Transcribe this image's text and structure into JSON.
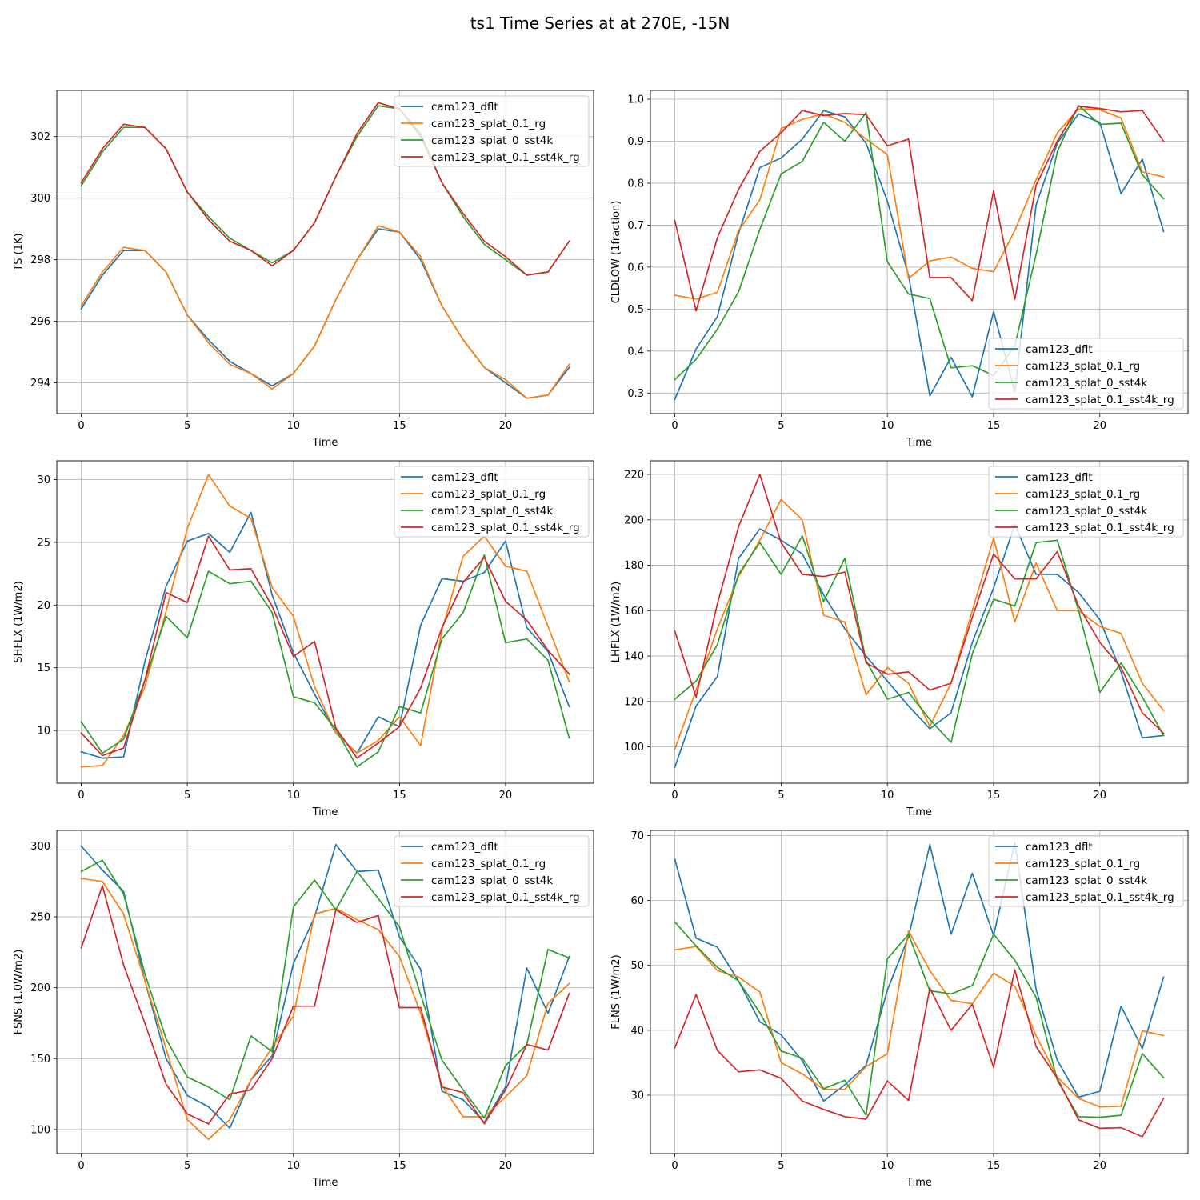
{
  "title": "ts1 Time Series at at 270E, -15N",
  "colors": {
    "cam123_dflt": "#1f77b4",
    "cam123_splat_0.1_rg": "#ff7f0e",
    "cam123_splat_0_sst4k": "#2ca02c",
    "cam123_splat_0.1_sst4k_rg": "#d62728"
  },
  "chart_data": [
    {
      "type": "line",
      "id": "ts",
      "xlabel": "Time",
      "ylabel": "TS (1K)",
      "xlim": [
        -1.15,
        24.15
      ],
      "ylim": [
        293.0,
        303.5
      ],
      "xticks": [
        0,
        5,
        10,
        15,
        20
      ],
      "yticks": [
        294,
        296,
        298,
        300,
        302
      ],
      "grid": true,
      "legend": "upper right",
      "x": [
        0,
        1,
        2,
        3,
        4,
        5,
        6,
        7,
        8,
        9,
        10,
        11,
        12,
        13,
        14,
        15,
        16,
        17,
        18,
        19,
        20,
        21,
        22,
        23
      ],
      "series": [
        {
          "name": "cam123_dflt",
          "values": [
            296.4,
            297.5,
            298.3,
            298.3,
            297.6,
            296.2,
            295.4,
            294.7,
            294.3,
            293.9,
            294.3,
            295.2,
            296.7,
            298.0,
            299.0,
            298.9,
            298.0,
            296.5,
            295.4,
            294.5,
            294.0,
            293.5,
            293.6,
            294.5
          ]
        },
        {
          "name": "cam123_splat_0.1_rg",
          "values": [
            296.5,
            297.6,
            298.4,
            298.3,
            297.6,
            296.2,
            295.3,
            294.6,
            294.3,
            293.8,
            294.3,
            295.2,
            296.7,
            298.0,
            299.1,
            298.9,
            298.1,
            296.5,
            295.4,
            294.5,
            294.1,
            293.5,
            293.6,
            294.6
          ]
        },
        {
          "name": "cam123_splat_0_sst4k",
          "values": [
            300.4,
            301.5,
            302.3,
            302.3,
            301.6,
            300.2,
            299.4,
            298.7,
            298.3,
            297.9,
            298.3,
            299.2,
            300.7,
            302.0,
            303.0,
            302.9,
            302.1,
            300.5,
            299.4,
            298.5,
            298.0,
            297.5,
            297.6,
            298.6
          ]
        },
        {
          "name": "cam123_splat_0.1_sst4k_rg",
          "values": [
            300.5,
            301.6,
            302.4,
            302.3,
            301.6,
            300.2,
            299.3,
            298.6,
            298.3,
            297.8,
            298.3,
            299.2,
            300.7,
            302.1,
            303.1,
            302.9,
            302.0,
            300.5,
            299.5,
            298.6,
            298.1,
            297.5,
            297.6,
            298.6
          ]
        }
      ]
    },
    {
      "type": "line",
      "id": "cldlow",
      "xlabel": "Time",
      "ylabel": "CLDLOW (1fraction)",
      "xlim": [
        -1.15,
        24.15
      ],
      "ylim": [
        0.251,
        1.021
      ],
      "xticks": [
        0,
        5,
        10,
        15,
        20
      ],
      "yticks": [
        0.3,
        0.4,
        0.5,
        0.6,
        0.7,
        0.8,
        0.9,
        1.0
      ],
      "ytick_labels": [
        "0.3",
        "0.4",
        "0.5",
        "0.6",
        "0.7",
        "0.8",
        "0.9",
        "1.0"
      ],
      "grid": true,
      "legend": "lower right",
      "x": [
        0,
        1,
        2,
        3,
        4,
        5,
        6,
        7,
        8,
        9,
        10,
        11,
        12,
        13,
        14,
        15,
        16,
        17,
        18,
        19,
        20,
        21,
        22,
        23
      ],
      "series": [
        {
          "name": "cam123_dflt",
          "values": [
            0.285,
            0.405,
            0.482,
            0.68,
            0.837,
            0.86,
            0.905,
            0.973,
            0.958,
            0.895,
            0.757,
            0.58,
            0.293,
            0.385,
            0.291,
            0.494,
            0.303,
            0.748,
            0.895,
            0.965,
            0.945,
            0.775,
            0.857,
            0.685
          ]
        },
        {
          "name": "cam123_splat_0.1_rg",
          "values": [
            0.533,
            0.524,
            0.54,
            0.687,
            0.76,
            0.93,
            0.952,
            0.965,
            0.945,
            0.905,
            0.868,
            0.573,
            0.615,
            0.624,
            0.597,
            0.589,
            0.687,
            0.808,
            0.92,
            0.977,
            0.975,
            0.955,
            0.827,
            0.815
          ]
        },
        {
          "name": "cam123_splat_0_sst4k",
          "values": [
            0.332,
            0.38,
            0.452,
            0.541,
            0.69,
            0.822,
            0.852,
            0.945,
            0.9,
            0.968,
            0.613,
            0.536,
            0.525,
            0.36,
            0.365,
            0.342,
            0.412,
            0.63,
            0.875,
            0.985,
            0.94,
            0.943,
            0.82,
            0.763
          ]
        },
        {
          "name": "cam123_splat_0.1_sst4k_rg",
          "values": [
            0.711,
            0.496,
            0.67,
            0.785,
            0.876,
            0.92,
            0.973,
            0.961,
            0.966,
            0.963,
            0.889,
            0.905,
            0.575,
            0.575,
            0.52,
            0.782,
            0.523,
            0.795,
            0.9,
            0.983,
            0.978,
            0.97,
            0.973,
            0.9
          ]
        }
      ]
    },
    {
      "type": "line",
      "id": "shflx",
      "xlabel": "Time",
      "ylabel": "SHFLX (1W/m2)",
      "xlim": [
        -1.15,
        24.15
      ],
      "ylim": [
        5.8,
        31.5
      ],
      "xticks": [
        0,
        5,
        10,
        15,
        20
      ],
      "yticks": [
        10,
        15,
        20,
        25,
        30
      ],
      "grid": true,
      "legend": "upper right",
      "x": [
        0,
        1,
        2,
        3,
        4,
        5,
        6,
        7,
        8,
        9,
        10,
        11,
        12,
        13,
        14,
        15,
        16,
        17,
        18,
        19,
        20,
        21,
        22,
        23
      ],
      "series": [
        {
          "name": "cam123_dflt",
          "values": [
            8.3,
            7.8,
            7.9,
            15.5,
            21.5,
            25.1,
            25.7,
            24.2,
            27.4,
            20.8,
            16.2,
            12.9,
            9.8,
            8.2,
            11.1,
            10.3,
            18.4,
            22.1,
            21.9,
            22.6,
            25.1,
            18.2,
            16.3,
            11.9
          ]
        },
        {
          "name": "cam123_splat_0.1_rg",
          "values": [
            7.1,
            7.2,
            9.6,
            13.5,
            19.5,
            26.1,
            30.4,
            27.9,
            26.9,
            21.4,
            19.1,
            13.5,
            9.8,
            8.2,
            9.2,
            11.1,
            8.8,
            18.0,
            23.9,
            25.5,
            23.1,
            22.7,
            18.3,
            13.9
          ]
        },
        {
          "name": "cam123_splat_0_sst4k",
          "values": [
            10.7,
            8.2,
            9.3,
            14.0,
            19.1,
            17.4,
            22.7,
            21.7,
            21.9,
            19.4,
            12.7,
            12.2,
            10.1,
            7.1,
            8.3,
            11.9,
            11.4,
            17.3,
            19.4,
            24.0,
            17.0,
            17.3,
            15.6,
            9.4
          ]
        },
        {
          "name": "cam123_splat_0.1_sst4k_rg",
          "values": [
            9.8,
            8.0,
            8.6,
            14.0,
            21.0,
            20.2,
            25.5,
            22.8,
            22.9,
            19.9,
            15.9,
            17.1,
            10.2,
            7.8,
            9.0,
            10.3,
            13.4,
            18.2,
            21.8,
            23.8,
            20.3,
            18.8,
            16.4,
            14.5
          ]
        }
      ]
    },
    {
      "type": "line",
      "id": "lhflx",
      "xlabel": "Time",
      "ylabel": "LHFLX (1W/m2)",
      "xlim": [
        -1.15,
        24.15
      ],
      "ylim": [
        84.0,
        226.0
      ],
      "xticks": [
        0,
        5,
        10,
        15,
        20
      ],
      "yticks": [
        100,
        120,
        140,
        160,
        180,
        200,
        220
      ],
      "grid": true,
      "legend": "upper right",
      "x": [
        0,
        1,
        2,
        3,
        4,
        5,
        6,
        7,
        8,
        9,
        10,
        11,
        12,
        13,
        14,
        15,
        16,
        17,
        18,
        19,
        20,
        21,
        22,
        23
      ],
      "series": [
        {
          "name": "cam123_dflt",
          "values": [
            91,
            118,
            131,
            183,
            196,
            191,
            185,
            167,
            152,
            140,
            129,
            118,
            108,
            115,
            146,
            170,
            198,
            176,
            176,
            168,
            156,
            133,
            104,
            105
          ]
        },
        {
          "name": "cam123_splat_0.1_rg",
          "values": [
            99,
            125,
            152,
            175,
            191,
            209,
            200,
            158,
            155,
            123,
            135,
            128,
            109,
            128,
            160,
            192,
            155,
            181,
            160,
            160,
            153,
            150,
            128,
            116
          ]
        },
        {
          "name": "cam123_splat_0_sst4k",
          "values": [
            121,
            129,
            145,
            176,
            190,
            176,
            193,
            164,
            183,
            138,
            121,
            124,
            112,
            102,
            141,
            165,
            162,
            190,
            191,
            160,
            124,
            137,
            122,
            105
          ]
        },
        {
          "name": "cam123_splat_0.1_sst4k_rg",
          "values": [
            151,
            122,
            163,
            197,
            220,
            190,
            176,
            175,
            177,
            137,
            132,
            133,
            125,
            128,
            157,
            185,
            174,
            174,
            186,
            162,
            146,
            135,
            115,
            106
          ]
        }
      ]
    },
    {
      "type": "line",
      "id": "fsns",
      "xlabel": "Time",
      "ylabel": "FSNS (1.0W/m2)",
      "xlim": [
        -1.15,
        24.15
      ],
      "ylim": [
        83.0,
        311.0
      ],
      "xticks": [
        0,
        5,
        10,
        15,
        20
      ],
      "yticks": [
        100,
        150,
        200,
        250,
        300
      ],
      "grid": true,
      "legend": "upper right",
      "x": [
        0,
        1,
        2,
        3,
        4,
        5,
        6,
        7,
        8,
        9,
        10,
        11,
        12,
        13,
        14,
        15,
        16,
        17,
        18,
        19,
        20,
        21,
        22,
        23
      ],
      "series": [
        {
          "name": "cam123_dflt",
          "values": [
            300,
            283,
            268,
            205,
            150,
            124,
            116,
            101,
            135,
            152,
            217,
            250,
            301,
            282,
            283,
            236,
            213,
            127,
            121,
            105,
            130,
            214,
            182,
            222
          ]
        },
        {
          "name": "cam123_splat_0.1_rg",
          "values": [
            277,
            275,
            252,
            205,
            157,
            107,
            93,
            107,
            135,
            158,
            180,
            252,
            256,
            248,
            241,
            222,
            182,
            131,
            109,
            109,
            123,
            138,
            189,
            203
          ]
        },
        {
          "name": "cam123_splat_0_sst4k",
          "values": [
            282,
            290,
            266,
            210,
            164,
            137,
            130,
            121,
            166,
            155,
            257,
            276,
            255,
            282,
            263,
            243,
            195,
            149,
            128,
            108,
            145,
            160,
            227,
            221
          ]
        },
        {
          "name": "cam123_splat_0.1_sst4k_rg",
          "values": [
            228,
            272,
            216,
            175,
            132,
            111,
            104,
            125,
            128,
            150,
            187,
            187,
            255,
            246,
            251,
            186,
            186,
            130,
            126,
            104,
            128,
            160,
            156,
            196
          ]
        }
      ]
    },
    {
      "type": "line",
      "id": "flns",
      "xlabel": "Time",
      "ylabel": "FLNS (1W/m2)",
      "xlim": [
        -1.15,
        24.15
      ],
      "ylim": [
        21.0,
        70.8
      ],
      "xticks": [
        0,
        5,
        10,
        15,
        20
      ],
      "yticks": [
        30,
        40,
        50,
        60,
        70
      ],
      "grid": true,
      "legend": "upper right",
      "x": [
        0,
        1,
        2,
        3,
        4,
        5,
        6,
        7,
        8,
        9,
        10,
        11,
        12,
        13,
        14,
        15,
        16,
        17,
        18,
        19,
        20,
        21,
        22,
        23
      ],
      "series": [
        {
          "name": "cam123_dflt",
          "values": [
            66.4,
            54.2,
            52.8,
            47.6,
            41.3,
            39.3,
            35.3,
            29.1,
            31.6,
            34.6,
            46.2,
            54.4,
            68.6,
            54.8,
            64.2,
            54.6,
            68.9,
            46.3,
            35.4,
            29.7,
            30.6,
            43.7,
            37.2,
            48.2
          ]
        },
        {
          "name": "cam123_splat_0.1_rg",
          "values": [
            52.4,
            52.9,
            49.2,
            48.2,
            45.9,
            35.0,
            33.3,
            30.9,
            30.9,
            34.4,
            36.4,
            55.3,
            49.2,
            44.6,
            44.1,
            48.8,
            46.8,
            39.2,
            32.8,
            29.5,
            28.2,
            28.3,
            39.9,
            39.2
          ]
        },
        {
          "name": "cam123_splat_0_sst4k",
          "values": [
            56.7,
            53.0,
            49.7,
            47.6,
            42.7,
            36.8,
            35.7,
            31.0,
            32.3,
            26.9,
            51.0,
            54.8,
            46.1,
            45.6,
            46.9,
            54.8,
            50.8,
            45.1,
            32.3,
            26.7,
            26.6,
            26.9,
            36.4,
            32.7
          ]
        },
        {
          "name": "cam123_splat_0.1_sst4k_rg",
          "values": [
            37.3,
            45.5,
            36.9,
            33.6,
            33.9,
            32.6,
            29.1,
            27.8,
            26.7,
            26.3,
            32.2,
            29.2,
            46.5,
            40.0,
            44.0,
            34.3,
            49.3,
            37.5,
            32.6,
            26.2,
            24.9,
            25.0,
            23.6,
            29.5
          ]
        }
      ]
    }
  ]
}
